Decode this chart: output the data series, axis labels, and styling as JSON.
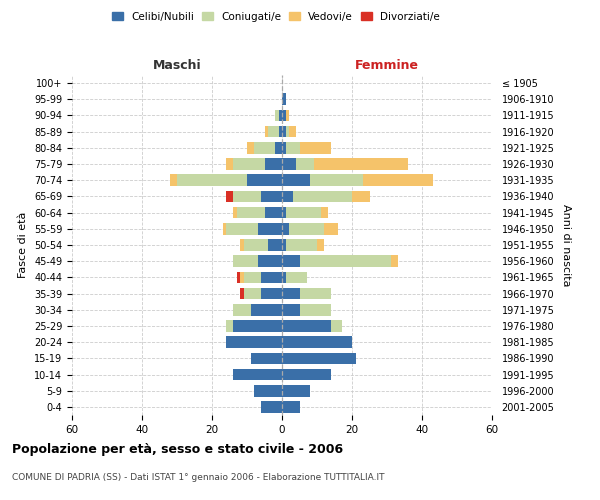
{
  "age_groups": [
    "0-4",
    "5-9",
    "10-14",
    "15-19",
    "20-24",
    "25-29",
    "30-34",
    "35-39",
    "40-44",
    "45-49",
    "50-54",
    "55-59",
    "60-64",
    "65-69",
    "70-74",
    "75-79",
    "80-84",
    "85-89",
    "90-94",
    "95-99",
    "100+"
  ],
  "birth_years": [
    "2001-2005",
    "1996-2000",
    "1991-1995",
    "1986-1990",
    "1981-1985",
    "1976-1980",
    "1971-1975",
    "1966-1970",
    "1961-1965",
    "1956-1960",
    "1951-1955",
    "1946-1950",
    "1941-1945",
    "1936-1940",
    "1931-1935",
    "1926-1930",
    "1921-1925",
    "1916-1920",
    "1911-1915",
    "1906-1910",
    "≤ 1905"
  ],
  "males": {
    "celibe": [
      6,
      8,
      14,
      9,
      16,
      14,
      9,
      6,
      6,
      7,
      4,
      7,
      5,
      6,
      10,
      5,
      2,
      1,
      1,
      0,
      0
    ],
    "coniugato": [
      0,
      0,
      0,
      0,
      0,
      2,
      5,
      5,
      5,
      7,
      7,
      9,
      8,
      8,
      20,
      9,
      6,
      3,
      1,
      0,
      0
    ],
    "vedovo": [
      0,
      0,
      0,
      0,
      0,
      0,
      0,
      0,
      1,
      0,
      1,
      1,
      1,
      0,
      2,
      2,
      2,
      1,
      0,
      0,
      0
    ],
    "divorziato": [
      0,
      0,
      0,
      0,
      0,
      0,
      0,
      1,
      1,
      0,
      0,
      0,
      0,
      2,
      0,
      0,
      0,
      0,
      0,
      0,
      0
    ]
  },
  "females": {
    "nubile": [
      5,
      8,
      14,
      21,
      20,
      14,
      5,
      5,
      1,
      5,
      1,
      2,
      1,
      3,
      8,
      4,
      1,
      1,
      1,
      1,
      0
    ],
    "coniugata": [
      0,
      0,
      0,
      0,
      0,
      3,
      9,
      9,
      6,
      26,
      9,
      10,
      10,
      17,
      15,
      5,
      4,
      1,
      0,
      0,
      0
    ],
    "vedova": [
      0,
      0,
      0,
      0,
      0,
      0,
      0,
      0,
      0,
      2,
      2,
      4,
      2,
      5,
      20,
      27,
      9,
      2,
      1,
      0,
      0
    ],
    "divorziata": [
      0,
      0,
      0,
      0,
      0,
      0,
      0,
      0,
      0,
      0,
      0,
      0,
      0,
      0,
      0,
      0,
      0,
      0,
      0,
      0,
      0
    ]
  },
  "colors": {
    "celibe_nubile": "#3a6fa8",
    "coniugato_a": "#c5d8a4",
    "vedovo_a": "#f5c36a",
    "divorziato_a": "#d93025"
  },
  "xlim": 60,
  "title": "Popolazione per età, sesso e stato civile - 2006",
  "subtitle": "COMUNE DI PADRIA (SS) - Dati ISTAT 1° gennaio 2006 - Elaborazione TUTTITALIA.IT",
  "xlabel_left": "Maschi",
  "xlabel_right": "Femmine",
  "ylabel": "Fasce di età",
  "ylabel_right": "Anni di nascita",
  "legend_labels": [
    "Celibi/Nubili",
    "Coniugati/e",
    "Vedovi/e",
    "Divorziati/e"
  ],
  "background_color": "#ffffff",
  "grid_color": "#cccccc"
}
